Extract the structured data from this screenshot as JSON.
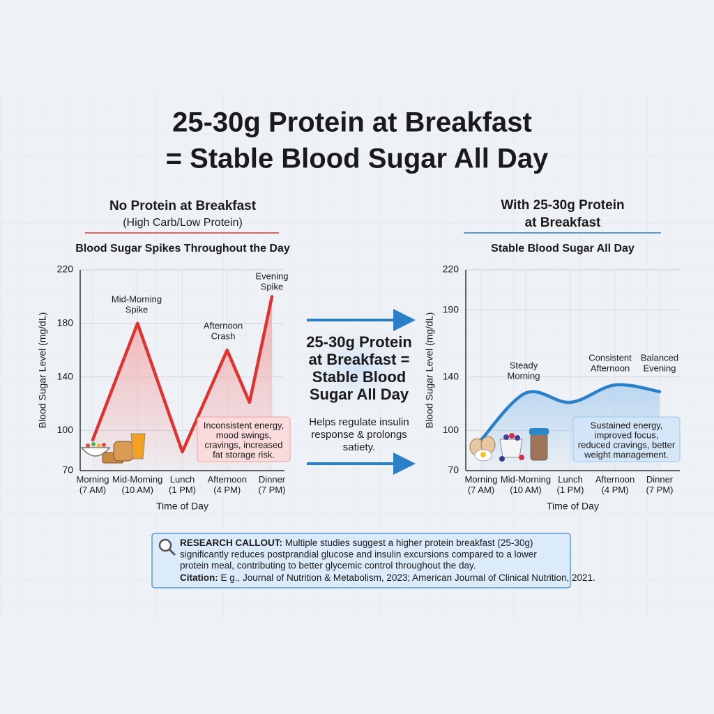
{
  "title": [
    "25-30g Protein at Breakfast",
    "= Stable Blood Sugar All Day"
  ],
  "chart_data": [
    {
      "type": "line",
      "heading": [
        "No Protein at Breakfast"
      ],
      "subheading": "(High Carb/Low Protein)",
      "title": "Blood Sugar Spikes Throughout the Day",
      "y_label": "Blood Sugar Level (mg/dL)",
      "x_label": "Time of Day",
      "categories": [
        "Morning (7 AM)",
        "Mid-Morning (10 AM)",
        "Lunch (1 PM)",
        "Afternoon (4 PM)",
        null,
        "Dinner (7 PM)"
      ],
      "series": [
        {
          "name": "No Protein at Breakfast",
          "color": "#e0332f",
          "values": [
            93,
            180,
            84,
            160,
            121,
            200
          ]
        }
      ],
      "smooth": false,
      "ylim": [
        70,
        220
      ],
      "yticks": [
        70,
        100,
        140,
        180,
        220
      ],
      "grid": true,
      "annotations": [
        [
          "Mid-Morning",
          "Spike"
        ],
        [
          "Afternoon",
          "Crash"
        ],
        [
          "Evening",
          "Spike"
        ]
      ],
      "callout": [
        "Inconsistent energy,",
        "mood swings,",
        "cravings, increased",
        "fat storage risk."
      ]
    },
    {
      "type": "line",
      "heading": [
        "With 25-30g Protein",
        "at Breakfast"
      ],
      "title": "Stable Blood Sugar All Day",
      "y_label": "Blood Sugar Level (mg/dL)",
      "x_label": "Time of Day",
      "categories": [
        "Morning (7 AM)",
        "Mid-Morning (10 AM)",
        "Lunch (1 PM)",
        "Afternoon (4 PM)",
        "Dinner (7 PM)"
      ],
      "series": [
        {
          "name": "With 25-30g Protein at Breakfast",
          "color": "#2a7fc9",
          "values": [
            93,
            128,
            121,
            134,
            129
          ]
        }
      ],
      "smooth": true,
      "ylim": [
        70,
        220
      ],
      "yticks": [
        70,
        100,
        140,
        190,
        220
      ],
      "grid": true,
      "annotations": [
        [
          "Steady",
          "Morning"
        ],
        [
          "Consistent",
          "Afternoon"
        ],
        [
          "Balanced",
          "Evening"
        ]
      ],
      "callout": [
        "Sustained energy,",
        "improved focus,",
        "reduced cravings, better",
        "weight management."
      ]
    }
  ],
  "center": {
    "headline": [
      "25-30g Protein",
      "at Breakfast =",
      "Stable Blood",
      "Sugar All Day"
    ],
    "text": [
      "Helps regulate insulin",
      "response & prolongs",
      "satiety."
    ]
  },
  "research": {
    "label": "RESEARCH CALLOUT:",
    "lines": [
      " Multiple studies suggest a higher protein breakfast (25-30g)",
      "significantly reduces postprandial glucose and insulin excursions compared to a lower",
      "protein meal, contributing to better glycemic control throughout the day."
    ],
    "citation_label": "Citation:",
    "citation": " E g., Journal of Nutrition & Metabolism, 2023; American Journal of Clinical Nutrition, 2021."
  }
}
